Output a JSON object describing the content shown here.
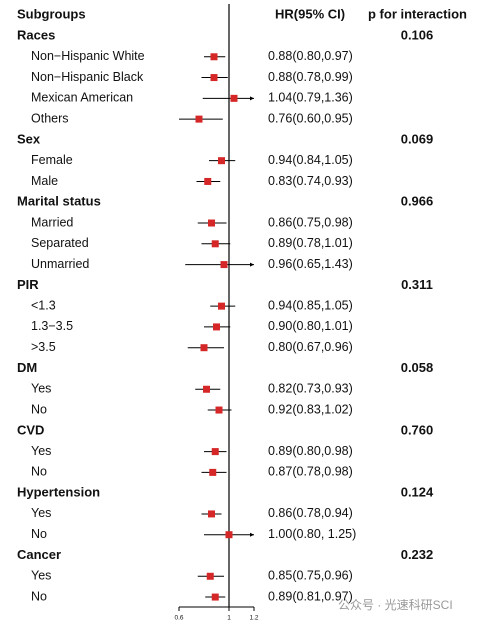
{
  "chart_data": {
    "type": "forest",
    "columns": [
      "Subgroups",
      "HR(95% CI)",
      "p for interaction"
    ],
    "xlim": [
      0.6,
      1.2
    ],
    "xticks": [
      0.6,
      1,
      1.2
    ],
    "reference": 1,
    "color": "#d62728",
    "watermark": "公众号 · 光速科研SCI",
    "groups": [
      {
        "name": "Races",
        "p": "0.106",
        "rows": [
          {
            "label": "Non−Hispanic White",
            "hr": 0.88,
            "lower": 0.8,
            "upper": 0.97,
            "ci_label": "0.88(0.80,0.97)"
          },
          {
            "label": "Non−Hispanic Black",
            "hr": 0.88,
            "lower": 0.78,
            "upper": 0.99,
            "ci_label": "0.88(0.78,0.99)"
          },
          {
            "label": "Mexican American",
            "hr": 1.04,
            "lower": 0.79,
            "upper": 1.36,
            "ci_label": "1.04(0.79,1.36)"
          },
          {
            "label": "Others",
            "hr": 0.76,
            "lower": 0.6,
            "upper": 0.95,
            "ci_label": "0.76(0.60,0.95)"
          }
        ]
      },
      {
        "name": "Sex",
        "p": "0.069",
        "rows": [
          {
            "label": "Female",
            "hr": 0.94,
            "lower": 0.84,
            "upper": 1.05,
            "ci_label": "0.94(0.84,1.05)"
          },
          {
            "label": "Male",
            "hr": 0.83,
            "lower": 0.74,
            "upper": 0.93,
            "ci_label": "0.83(0.74,0.93)"
          }
        ]
      },
      {
        "name": "Marital status",
        "p": "0.966",
        "rows": [
          {
            "label": "Married",
            "hr": 0.86,
            "lower": 0.75,
            "upper": 0.98,
            "ci_label": "0.86(0.75,0.98)"
          },
          {
            "label": "Separated",
            "hr": 0.89,
            "lower": 0.78,
            "upper": 1.01,
            "ci_label": "0.89(0.78,1.01)"
          },
          {
            "label": "Unmarried",
            "hr": 0.96,
            "lower": 0.65,
            "upper": 1.43,
            "ci_label": "0.96(0.65,1.43)"
          }
        ]
      },
      {
        "name": "PIR",
        "p": "0.311",
        "rows": [
          {
            "label": "<1.3",
            "hr": 0.94,
            "lower": 0.85,
            "upper": 1.05,
            "ci_label": "0.94(0.85,1.05)"
          },
          {
            "label": "1.3−3.5",
            "hr": 0.9,
            "lower": 0.8,
            "upper": 1.01,
            "ci_label": "0.90(0.80,1.01)"
          },
          {
            "label": ">3.5",
            "hr": 0.8,
            "lower": 0.67,
            "upper": 0.96,
            "ci_label": "0.80(0.67,0.96)"
          }
        ]
      },
      {
        "name": "DM",
        "p": "0.058",
        "rows": [
          {
            "label": "Yes",
            "hr": 0.82,
            "lower": 0.73,
            "upper": 0.93,
            "ci_label": "0.82(0.73,0.93)"
          },
          {
            "label": "No",
            "hr": 0.92,
            "lower": 0.83,
            "upper": 1.02,
            "ci_label": "0.92(0.83,1.02)"
          }
        ]
      },
      {
        "name": "CVD",
        "p": "0.760",
        "rows": [
          {
            "label": "Yes",
            "hr": 0.89,
            "lower": 0.8,
            "upper": 0.98,
            "ci_label": "0.89(0.80,0.98)"
          },
          {
            "label": "No",
            "hr": 0.87,
            "lower": 0.78,
            "upper": 0.98,
            "ci_label": "0.87(0.78,0.98)"
          }
        ]
      },
      {
        "name": "Hypertension",
        "p": "0.124",
        "rows": [
          {
            "label": "Yes",
            "hr": 0.86,
            "lower": 0.78,
            "upper": 0.94,
            "ci_label": "0.86(0.78,0.94)"
          },
          {
            "label": "No",
            "hr": 1.0,
            "lower": 0.8,
            "upper": 1.25,
            "ci_label": "1.00(0.80, 1.25)"
          }
        ]
      },
      {
        "name": "Cancer",
        "p": "0.232",
        "rows": [
          {
            "label": "Yes",
            "hr": 0.85,
            "lower": 0.75,
            "upper": 0.96,
            "ci_label": "0.85(0.75,0.96)"
          },
          {
            "label": "No",
            "hr": 0.89,
            "lower": 0.81,
            "upper": 0.97,
            "ci_label": "0.89(0.81,0.97)"
          }
        ]
      }
    ]
  }
}
